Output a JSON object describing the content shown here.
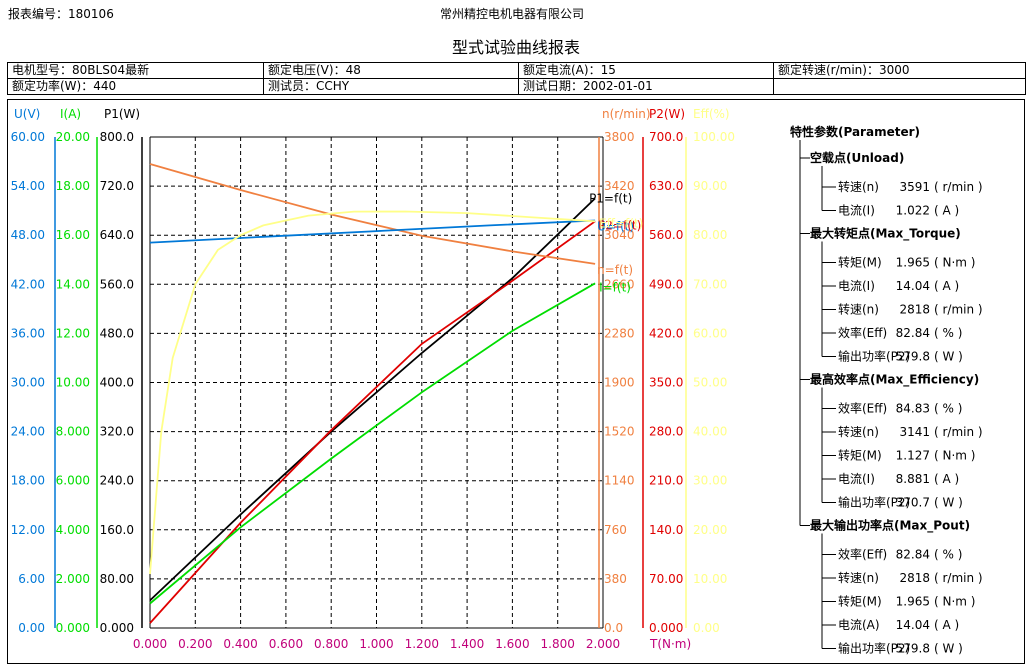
{
  "header": {
    "report_no_label": "报表编号：",
    "report_no": "180106",
    "company": "常州精控电机电器有限公司",
    "title": "型式试验曲线报表"
  },
  "info": {
    "row1": [
      {
        "label": "电机型号：",
        "value": "80BLS04最新"
      },
      {
        "label": "额定电压(V)：",
        "value": "48"
      },
      {
        "label": "额定电流(A)：",
        "value": "15"
      },
      {
        "label": "额定转速(r/min)：",
        "value": "3000"
      }
    ],
    "row2": [
      {
        "label": "额定功率(W)：",
        "value": "440"
      },
      {
        "label": "测试员：",
        "value": "CCHY"
      },
      {
        "label": "测试日期：",
        "value": "2002-01-01"
      },
      {
        "label": "",
        "value": ""
      }
    ]
  },
  "colors": {
    "voltage": "#0078D7",
    "current": "#00DD00",
    "p1": "#000000",
    "speed": "#F08040",
    "p2": "#E00000",
    "eff": "#FFFF88",
    "torque_axis": "#C0007A",
    "grid": "#000000"
  },
  "chart_data": {
    "type": "line",
    "xlabel": "T(N·m)",
    "xlim": [
      0,
      2
    ],
    "x_ticks": [
      "0.000",
      "0.200",
      "0.400",
      "0.600",
      "0.800",
      "1.000",
      "1.200",
      "1.400",
      "1.600",
      "1.800",
      "2.000"
    ],
    "axes": [
      {
        "id": "U",
        "label": "U(V)",
        "color": "#0078D7",
        "range": [
          0,
          60
        ],
        "ticks": [
          "60.00",
          "54.00",
          "48.00",
          "42.00",
          "36.00",
          "30.00",
          "24.00",
          "18.00",
          "12.00",
          "6.00",
          "0.00"
        ]
      },
      {
        "id": "I",
        "label": "I(A)",
        "color": "#00DD00",
        "range": [
          0,
          20
        ],
        "ticks": [
          "20.00",
          "18.00",
          "16.00",
          "14.00",
          "12.00",
          "10.00",
          "8.000",
          "6.000",
          "4.000",
          "2.000",
          "0.000"
        ]
      },
      {
        "id": "P1",
        "label": "P1(W)",
        "color": "#000000",
        "range": [
          0,
          800
        ],
        "ticks": [
          "800.0",
          "720.0",
          "640.0",
          "560.0",
          "480.0",
          "400.0",
          "320.0",
          "240.0",
          "160.0",
          "80.00",
          "0.000"
        ]
      },
      {
        "id": "n",
        "label": "n(r/min)",
        "color": "#F08040",
        "range": [
          0,
          3800
        ],
        "ticks": [
          "3800",
          "3420",
          "3040",
          "2660",
          "2280",
          "1900",
          "1520",
          "1140",
          "760",
          "380",
          "0.0"
        ]
      },
      {
        "id": "P2",
        "label": "P2(W)",
        "color": "#E00000",
        "range": [
          0,
          700
        ],
        "ticks": [
          "700.0",
          "630.0",
          "560.0",
          "490.0",
          "420.0",
          "350.0",
          "280.0",
          "210.0",
          "140.0",
          "70.00",
          "0.000"
        ]
      },
      {
        "id": "Eff",
        "label": "Eff(%)",
        "color": "#FFFF88",
        "range": [
          0,
          100
        ],
        "ticks": [
          "100.00",
          "90.00",
          "80.00",
          "70.00",
          "60.00",
          "50.00",
          "40.00",
          "30.00",
          "20.00",
          "10.00",
          "0.00"
        ]
      }
    ],
    "series": [
      {
        "name": "P1=f(t)",
        "axis": "P1",
        "color": "#000000",
        "points": [
          [
            0.0,
            45
          ],
          [
            0.4,
            185
          ],
          [
            0.8,
            320
          ],
          [
            1.2,
            448
          ],
          [
            1.6,
            570
          ],
          [
            1.965,
            700
          ]
        ]
      },
      {
        "name": "P2=f(t)",
        "axis": "P2",
        "color": "#E00000",
        "points": [
          [
            0.0,
            7
          ],
          [
            0.4,
            150
          ],
          [
            0.8,
            282
          ],
          [
            1.2,
            405
          ],
          [
            1.6,
            495
          ],
          [
            1.965,
            579.8
          ]
        ]
      },
      {
        "name": "I=f(t)",
        "axis": "I",
        "color": "#00DD00",
        "points": [
          [
            0.0,
            1.0
          ],
          [
            0.4,
            4.1
          ],
          [
            0.8,
            6.9
          ],
          [
            1.2,
            9.6
          ],
          [
            1.6,
            12.1
          ],
          [
            1.965,
            14.04
          ]
        ]
      },
      {
        "name": "n=f(t)",
        "axis": "n",
        "color": "#F08040",
        "points": [
          [
            0.0,
            3591
          ],
          [
            0.4,
            3390
          ],
          [
            0.8,
            3200
          ],
          [
            1.2,
            3035
          ],
          [
            1.6,
            2915
          ],
          [
            1.965,
            2818
          ]
        ]
      },
      {
        "name": "U=f(t)",
        "axis": "U",
        "color": "#0078D7",
        "points": [
          [
            0.0,
            47.1
          ],
          [
            0.5,
            47.8
          ],
          [
            1.0,
            48.5
          ],
          [
            1.5,
            49.2
          ],
          [
            1.965,
            49.8
          ]
        ]
      },
      {
        "name": "Eff=f(t)",
        "axis": "Eff",
        "color": "#FFFF88",
        "points": [
          [
            0.0,
            11
          ],
          [
            0.05,
            40
          ],
          [
            0.1,
            55
          ],
          [
            0.2,
            70
          ],
          [
            0.3,
            77
          ],
          [
            0.4,
            80
          ],
          [
            0.5,
            82
          ],
          [
            0.7,
            84
          ],
          [
            0.9,
            84.8
          ],
          [
            1.127,
            84.83
          ],
          [
            1.4,
            84.5
          ],
          [
            1.7,
            83.6
          ],
          [
            1.965,
            82.84
          ]
        ]
      }
    ]
  },
  "params": {
    "title": "特性参数(Parameter)",
    "groups": [
      {
        "title": "空载点(Unload)",
        "items": [
          {
            "label": "转速(n)",
            "value": "3591",
            "unit": "( r/min )"
          },
          {
            "label": "电流(I)",
            "value": "1.022",
            "unit": "( A )"
          }
        ]
      },
      {
        "title": "最大转矩点(Max_Torque)",
        "items": [
          {
            "label": "转矩(M)",
            "value": "1.965",
            "unit": "( N·m )"
          },
          {
            "label": "电流(I)",
            "value": "14.04",
            "unit": "( A )"
          },
          {
            "label": "转速(n)",
            "value": "2818",
            "unit": "( r/min )"
          },
          {
            "label": "效率(Eff)",
            "value": "82.84",
            "unit": "( % )"
          },
          {
            "label": "输出功率(P2)",
            "value": "579.8",
            "unit": "( W )"
          }
        ]
      },
      {
        "title": "最高效率点(Max_Efficiency)",
        "items": [
          {
            "label": "效率(Eff)",
            "value": "84.83",
            "unit": "( % )"
          },
          {
            "label": "转速(n)",
            "value": "3141",
            "unit": "( r/min )"
          },
          {
            "label": "转矩(M)",
            "value": "1.127",
            "unit": "( N·m )"
          },
          {
            "label": "电流(I)",
            "value": "8.881",
            "unit": "( A )"
          },
          {
            "label": "输出功率(P2)",
            "value": "370.7",
            "unit": "( W )"
          }
        ]
      },
      {
        "title": "最大输出功率点(Max_Pout)",
        "items": [
          {
            "label": "效率(Eff)",
            "value": "82.84",
            "unit": "( % )"
          },
          {
            "label": "转速(n)",
            "value": "2818",
            "unit": "( r/min )"
          },
          {
            "label": "转矩(M)",
            "value": "1.965",
            "unit": "( N·m )"
          },
          {
            "label": "电流(A)",
            "value": "14.04",
            "unit": "( A )"
          },
          {
            "label": "输出功率(P2)",
            "value": "579.8",
            "unit": "( W )"
          }
        ]
      }
    ]
  }
}
